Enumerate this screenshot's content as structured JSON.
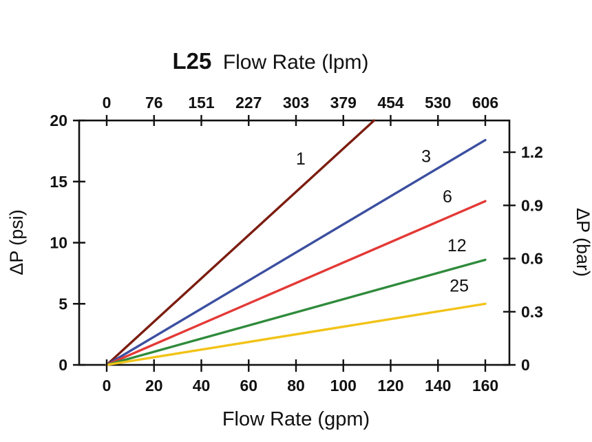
{
  "chart_data": {
    "type": "line",
    "title": "L25 Flow Rate (lpm)",
    "title_bold": "L25",
    "title_rest": "Flow Rate (lpm)",
    "xlabel": "Flow Rate (gpm)",
    "xlabel_top": "Flow Rate (lpm)",
    "ylabel_left": "ΔP (psi)",
    "ylabel_right": "ΔP (bar)",
    "xlim": [
      0,
      160
    ],
    "ylim": [
      0,
      20
    ],
    "grid": false,
    "legend_position": "inline-line-labels",
    "x_ticks_bottom_gpm": [
      "0",
      "20",
      "40",
      "60",
      "80",
      "100",
      "120",
      "140",
      "160"
    ],
    "x_ticks_top_lpm": [
      "0",
      "76",
      "151",
      "227",
      "303",
      "379",
      "454",
      "530",
      "606"
    ],
    "y_ticks_left_psi": [
      "0",
      "5",
      "10",
      "15",
      "20"
    ],
    "y_ticks_right_bar": [
      "0",
      "0.3",
      "0.6",
      "0.9",
      "1.2"
    ],
    "bar_per_psi": 0.06895,
    "axis_color": "#111111",
    "series": [
      {
        "name": "1",
        "color": "#7b1d10",
        "points": [
          [
            0,
            0
          ],
          [
            113,
            20
          ]
        ],
        "label_at": [
          82,
          16.4
        ]
      },
      {
        "name": "3",
        "color": "#3c4fa0",
        "points": [
          [
            0,
            0
          ],
          [
            160,
            18.4
          ]
        ],
        "label_at": [
          135,
          16.6
        ]
      },
      {
        "name": "6",
        "color": "#e33936",
        "points": [
          [
            0,
            0
          ],
          [
            160,
            13.4
          ]
        ],
        "label_at": [
          144,
          13.3
        ]
      },
      {
        "name": "12",
        "color": "#2f8b3c",
        "points": [
          [
            0,
            0
          ],
          [
            160,
            8.6
          ]
        ],
        "label_at": [
          148,
          9.3
        ]
      },
      {
        "name": "25",
        "color": "#f2c318",
        "points": [
          [
            0,
            0
          ],
          [
            160,
            5.0
          ]
        ],
        "label_at": [
          149,
          6.0
        ]
      }
    ]
  }
}
